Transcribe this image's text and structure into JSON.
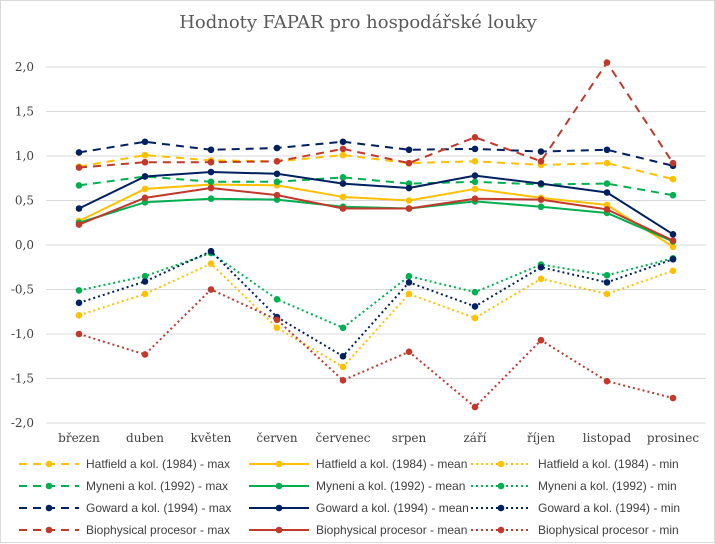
{
  "chart_data": {
    "type": "line",
    "title": "Hodnoty FAPAR pro hospodářské louky",
    "xlabel": "",
    "ylabel": "",
    "categories": [
      "březen",
      "duben",
      "květen",
      "červen",
      "červenec",
      "srpen",
      "září",
      "říjen",
      "listopad",
      "prosinec"
    ],
    "ylim": [
      -2.0,
      2.0
    ],
    "yticks": [
      2.0,
      1.5,
      1.0,
      0.5,
      0.0,
      -0.5,
      -1.0,
      -1.5,
      -2.0
    ],
    "ytick_labels": [
      "2,0",
      "1,5",
      "1,0",
      "0,5",
      "0,0",
      "-0,5",
      "-1,0",
      "-1,5",
      "-2,0"
    ],
    "grid": "horizontal",
    "legend_position": "bottom",
    "series": [
      {
        "name": "Hatfield a kol. (1984) - max",
        "color": "#FFC000",
        "dash": "dashed",
        "values": [
          0.88,
          1.01,
          0.95,
          0.94,
          1.01,
          0.92,
          0.94,
          0.9,
          0.92,
          0.74
        ]
      },
      {
        "name": "Hatfield a kol. (1984) - mean",
        "color": "#FFC000",
        "dash": "solid",
        "values": [
          0.27,
          0.63,
          0.68,
          0.67,
          0.54,
          0.5,
          0.63,
          0.53,
          0.45,
          -0.02
        ]
      },
      {
        "name": "Hatfield a kol. (1984) - min",
        "color": "#FFC000",
        "dash": "dotted",
        "values": [
          -0.79,
          -0.55,
          -0.21,
          -0.93,
          -1.37,
          -0.55,
          -0.82,
          -0.38,
          -0.55,
          -0.29
        ]
      },
      {
        "name": "Myneni a kol. (1992) - max",
        "color": "#00B050",
        "dash": "dashed",
        "values": [
          0.67,
          0.77,
          0.71,
          0.71,
          0.76,
          0.69,
          0.71,
          0.68,
          0.69,
          0.56
        ]
      },
      {
        "name": "Myneni a kol. (1992) - mean",
        "color": "#00B050",
        "dash": "solid",
        "values": [
          0.25,
          0.48,
          0.52,
          0.51,
          0.43,
          0.41,
          0.49,
          0.43,
          0.36,
          0.04
        ]
      },
      {
        "name": "Myneni a kol. (1992) - min",
        "color": "#00B050",
        "dash": "dotted",
        "values": [
          -0.51,
          -0.35,
          -0.09,
          -0.61,
          -0.93,
          -0.35,
          -0.53,
          -0.22,
          -0.34,
          -0.15
        ]
      },
      {
        "name": "Goward a kol. (1994) - max",
        "color": "#002060",
        "dash": "dashed",
        "values": [
          1.04,
          1.16,
          1.07,
          1.09,
          1.16,
          1.07,
          1.08,
          1.05,
          1.07,
          0.89
        ]
      },
      {
        "name": "Goward a kol. (1994) - mean",
        "color": "#002060",
        "dash": "solid",
        "values": [
          0.41,
          0.77,
          0.82,
          0.8,
          0.69,
          0.64,
          0.78,
          0.69,
          0.59,
          0.12
        ]
      },
      {
        "name": "Goward a kol. (1994) - min",
        "color": "#002060",
        "dash": "dotted",
        "values": [
          -0.65,
          -0.41,
          -0.07,
          -0.81,
          -1.25,
          -0.42,
          -0.69,
          -0.25,
          -0.42,
          -0.16
        ]
      },
      {
        "name": "Biophysical procesor - max",
        "color": "#C0392B",
        "dash": "dashed",
        "values": [
          0.87,
          0.93,
          0.93,
          0.94,
          1.08,
          0.92,
          1.21,
          0.94,
          2.05,
          0.92
        ]
      },
      {
        "name": "Biophysical procesor - mean",
        "color": "#C0392B",
        "dash": "solid",
        "values": [
          0.23,
          0.53,
          0.64,
          0.56,
          0.41,
          0.41,
          0.52,
          0.51,
          0.4,
          0.05
        ]
      },
      {
        "name": "Biophysical procesor - min",
        "color": "#C0392B",
        "dash": "dotted",
        "values": [
          -1.0,
          -1.23,
          -0.5,
          -0.84,
          -1.52,
          -1.2,
          -1.82,
          -1.07,
          -1.53,
          -1.72
        ]
      }
    ]
  }
}
